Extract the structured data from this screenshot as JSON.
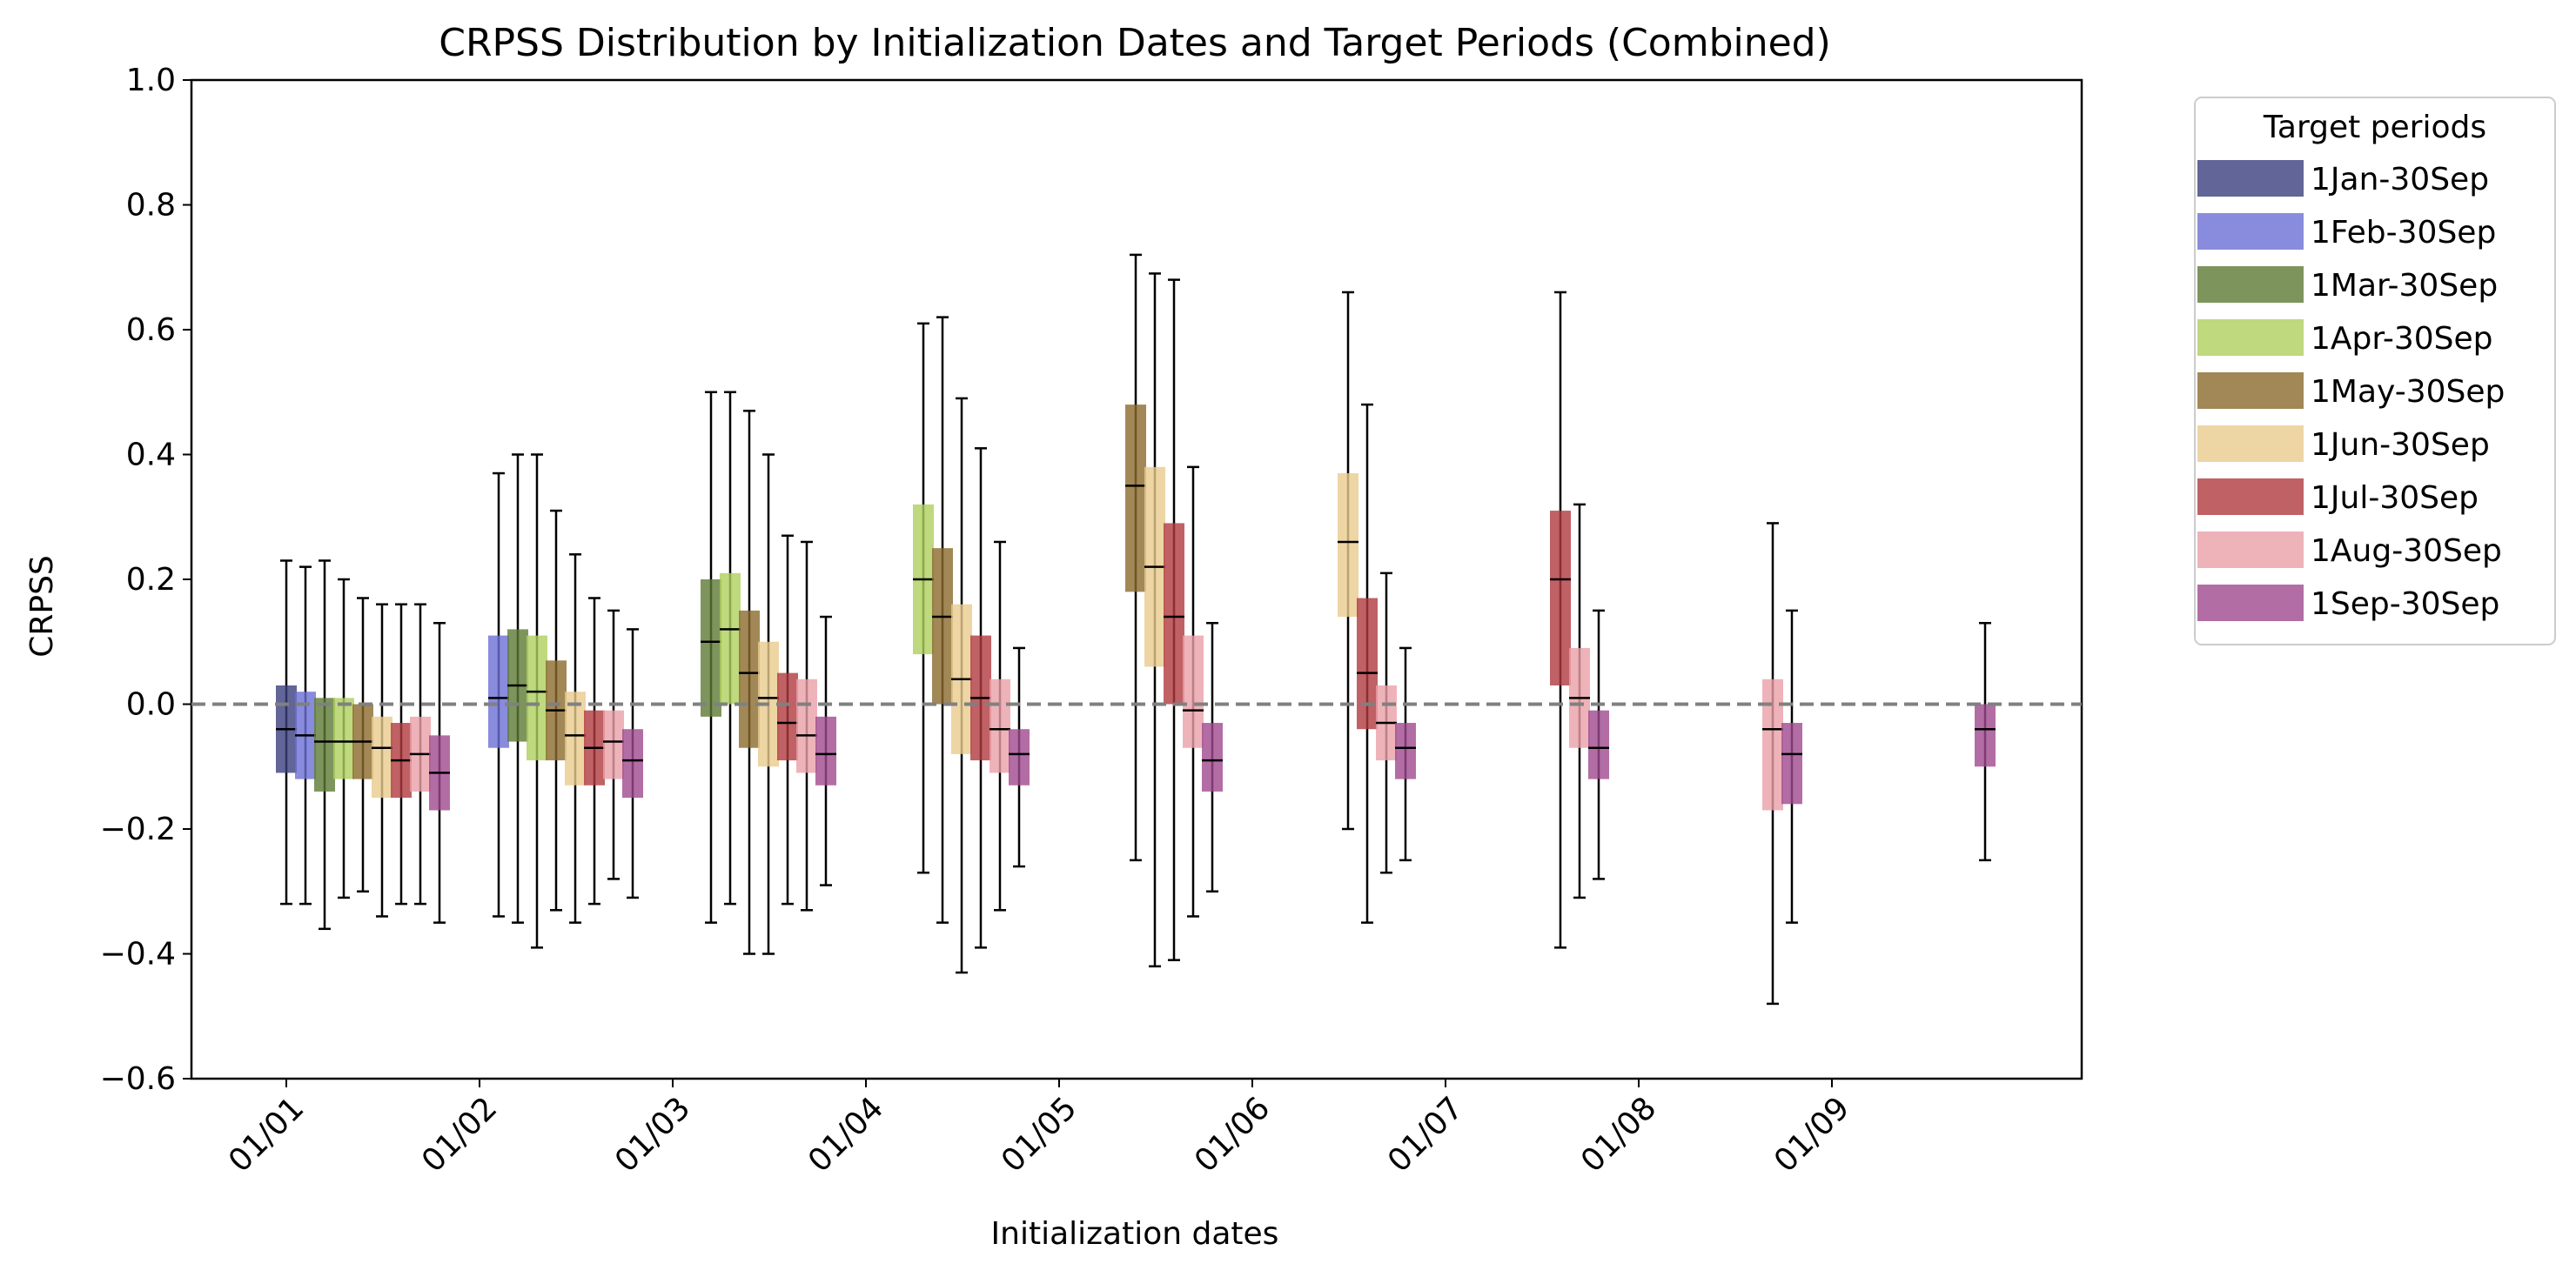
{
  "chart_data": {
    "type": "boxplot",
    "title": "CRPSS Distribution by Initialization Dates and Target Periods (Combined)",
    "xlabel": "Initialization dates",
    "ylabel": "CRPSS",
    "ylim": [
      -0.6,
      1.0
    ],
    "yticks": [
      -0.6,
      -0.4,
      -0.2,
      0.0,
      0.2,
      0.4,
      0.6,
      0.8,
      1.0
    ],
    "ytick_labels": [
      "−0.6",
      "−0.4",
      "−0.2",
      "0.0",
      "0.2",
      "0.4",
      "0.6",
      "0.8",
      "1.0"
    ],
    "categories": [
      "01/01",
      "01/02",
      "01/03",
      "01/04",
      "01/05",
      "01/06",
      "01/07",
      "01/08",
      "01/09"
    ],
    "reference_line": 0.0,
    "grid": false,
    "legend_title": "Target periods",
    "legend_position": "outside-right-top",
    "series": [
      {
        "name": "1Jan-30Sep",
        "color": "#3b3f7e",
        "boxes": [
          {
            "init": 0,
            "whisker_low": -0.32,
            "q1": -0.11,
            "median": -0.04,
            "q3": 0.03,
            "whisker_high": 0.23
          }
        ]
      },
      {
        "name": "1Feb-30Sep",
        "color": "#6b6ed4",
        "boxes": [
          {
            "init": 0,
            "whisker_low": -0.32,
            "q1": -0.12,
            "median": -0.05,
            "q3": 0.02,
            "whisker_high": 0.22
          },
          {
            "init": 1,
            "whisker_low": -0.34,
            "q1": -0.07,
            "median": 0.01,
            "q3": 0.11,
            "whisker_high": 0.37
          }
        ]
      },
      {
        "name": "1Mar-30Sep",
        "color": "#5c7a33",
        "boxes": [
          {
            "init": 0,
            "whisker_low": -0.36,
            "q1": -0.14,
            "median": -0.06,
            "q3": 0.01,
            "whisker_high": 0.23
          },
          {
            "init": 1,
            "whisker_low": -0.35,
            "q1": -0.06,
            "median": 0.03,
            "q3": 0.12,
            "whisker_high": 0.4
          },
          {
            "init": 2,
            "whisker_low": -0.35,
            "q1": -0.02,
            "median": 0.1,
            "q3": 0.2,
            "whisker_high": 0.5
          }
        ]
      },
      {
        "name": "1Apr-30Sep",
        "color": "#aed05e",
        "boxes": [
          {
            "init": 0,
            "whisker_low": -0.31,
            "q1": -0.12,
            "median": -0.06,
            "q3": 0.01,
            "whisker_high": 0.2
          },
          {
            "init": 1,
            "whisker_low": -0.39,
            "q1": -0.09,
            "median": 0.02,
            "q3": 0.11,
            "whisker_high": 0.4
          },
          {
            "init": 2,
            "whisker_low": -0.32,
            "q1": 0.0,
            "median": 0.12,
            "q3": 0.21,
            "whisker_high": 0.5
          },
          {
            "init": 3,
            "whisker_low": -0.27,
            "q1": 0.08,
            "median": 0.2,
            "q3": 0.32,
            "whisker_high": 0.61
          }
        ]
      },
      {
        "name": "1May-30Sep",
        "color": "#8b6a2c",
        "boxes": [
          {
            "init": 0,
            "whisker_low": -0.3,
            "q1": -0.12,
            "median": -0.06,
            "q3": 0.0,
            "whisker_high": 0.17
          },
          {
            "init": 1,
            "whisker_low": -0.33,
            "q1": -0.09,
            "median": -0.01,
            "q3": 0.07,
            "whisker_high": 0.31
          },
          {
            "init": 2,
            "whisker_low": -0.4,
            "q1": -0.07,
            "median": 0.05,
            "q3": 0.15,
            "whisker_high": 0.47
          },
          {
            "init": 3,
            "whisker_low": -0.35,
            "q1": 0.0,
            "median": 0.14,
            "q3": 0.25,
            "whisker_high": 0.62
          },
          {
            "init": 4,
            "whisker_low": -0.25,
            "q1": 0.18,
            "median": 0.35,
            "q3": 0.48,
            "whisker_high": 0.72
          }
        ]
      },
      {
        "name": "1Jun-30Sep",
        "color": "#e8ca8d",
        "boxes": [
          {
            "init": 0,
            "whisker_low": -0.34,
            "q1": -0.15,
            "median": -0.07,
            "q3": -0.02,
            "whisker_high": 0.16
          },
          {
            "init": 1,
            "whisker_low": -0.35,
            "q1": -0.13,
            "median": -0.05,
            "q3": 0.02,
            "whisker_high": 0.24
          },
          {
            "init": 2,
            "whisker_low": -0.4,
            "q1": -0.1,
            "median": 0.01,
            "q3": 0.1,
            "whisker_high": 0.4
          },
          {
            "init": 3,
            "whisker_low": -0.43,
            "q1": -0.08,
            "median": 0.04,
            "q3": 0.16,
            "whisker_high": 0.49
          },
          {
            "init": 4,
            "whisker_low": -0.42,
            "q1": 0.06,
            "median": 0.22,
            "q3": 0.38,
            "whisker_high": 0.69
          },
          {
            "init": 5,
            "whisker_low": -0.2,
            "q1": 0.14,
            "median": 0.26,
            "q3": 0.37,
            "whisker_high": 0.66
          }
        ]
      },
      {
        "name": "1Jul-30Sep",
        "color": "#b0393f",
        "boxes": [
          {
            "init": 0,
            "whisker_low": -0.32,
            "q1": -0.15,
            "median": -0.09,
            "q3": -0.03,
            "whisker_high": 0.16
          },
          {
            "init": 1,
            "whisker_low": -0.32,
            "q1": -0.13,
            "median": -0.07,
            "q3": -0.01,
            "whisker_high": 0.17
          },
          {
            "init": 2,
            "whisker_low": -0.32,
            "q1": -0.09,
            "median": -0.03,
            "q3": 0.05,
            "whisker_high": 0.27
          },
          {
            "init": 3,
            "whisker_low": -0.39,
            "q1": -0.09,
            "median": 0.01,
            "q3": 0.11,
            "whisker_high": 0.41
          },
          {
            "init": 4,
            "whisker_low": -0.41,
            "q1": 0.0,
            "median": 0.14,
            "q3": 0.29,
            "whisker_high": 0.68
          },
          {
            "init": 5,
            "whisker_low": -0.35,
            "q1": -0.04,
            "median": 0.05,
            "q3": 0.17,
            "whisker_high": 0.48
          },
          {
            "init": 6,
            "whisker_low": -0.39,
            "q1": 0.03,
            "median": 0.2,
            "q3": 0.31,
            "whisker_high": 0.66
          }
        ]
      },
      {
        "name": "1Aug-30Sep",
        "color": "#eaa0a8",
        "boxes": [
          {
            "init": 0,
            "whisker_low": -0.32,
            "q1": -0.14,
            "median": -0.08,
            "q3": -0.02,
            "whisker_high": 0.16
          },
          {
            "init": 1,
            "whisker_low": -0.28,
            "q1": -0.12,
            "median": -0.06,
            "q3": -0.01,
            "whisker_high": 0.15
          },
          {
            "init": 2,
            "whisker_low": -0.33,
            "q1": -0.11,
            "median": -0.05,
            "q3": 0.04,
            "whisker_high": 0.26
          },
          {
            "init": 3,
            "whisker_low": -0.33,
            "q1": -0.11,
            "median": -0.04,
            "q3": 0.04,
            "whisker_high": 0.26
          },
          {
            "init": 4,
            "whisker_low": -0.34,
            "q1": -0.07,
            "median": -0.01,
            "q3": 0.11,
            "whisker_high": 0.38
          },
          {
            "init": 5,
            "whisker_low": -0.27,
            "q1": -0.09,
            "median": -0.03,
            "q3": 0.03,
            "whisker_high": 0.21
          },
          {
            "init": 6,
            "whisker_low": -0.31,
            "q1": -0.07,
            "median": 0.01,
            "q3": 0.09,
            "whisker_high": 0.32
          },
          {
            "init": 7,
            "whisker_low": -0.48,
            "q1": -0.17,
            "median": -0.04,
            "q3": 0.04,
            "whisker_high": 0.29
          }
        ]
      },
      {
        "name": "1Sep-30Sep",
        "color": "#a0488f",
        "boxes": [
          {
            "init": 0,
            "whisker_low": -0.35,
            "q1": -0.17,
            "median": -0.11,
            "q3": -0.05,
            "whisker_high": 0.13
          },
          {
            "init": 1,
            "whisker_low": -0.31,
            "q1": -0.15,
            "median": -0.09,
            "q3": -0.04,
            "whisker_high": 0.12
          },
          {
            "init": 2,
            "whisker_low": -0.29,
            "q1": -0.13,
            "median": -0.08,
            "q3": -0.02,
            "whisker_high": 0.14
          },
          {
            "init": 3,
            "whisker_low": -0.26,
            "q1": -0.13,
            "median": -0.08,
            "q3": -0.04,
            "whisker_high": 0.09
          },
          {
            "init": 4,
            "whisker_low": -0.3,
            "q1": -0.14,
            "median": -0.09,
            "q3": -0.03,
            "whisker_high": 0.13
          },
          {
            "init": 5,
            "whisker_low": -0.25,
            "q1": -0.12,
            "median": -0.07,
            "q3": -0.03,
            "whisker_high": 0.09
          },
          {
            "init": 6,
            "whisker_low": -0.28,
            "q1": -0.12,
            "median": -0.07,
            "q3": -0.01,
            "whisker_high": 0.15
          },
          {
            "init": 7,
            "whisker_low": -0.35,
            "q1": -0.16,
            "median": -0.08,
            "q3": -0.03,
            "whisker_high": 0.15
          },
          {
            "init": 8,
            "whisker_low": -0.25,
            "q1": -0.1,
            "median": -0.04,
            "q3": 0.0,
            "whisker_high": 0.13
          }
        ]
      }
    ]
  }
}
